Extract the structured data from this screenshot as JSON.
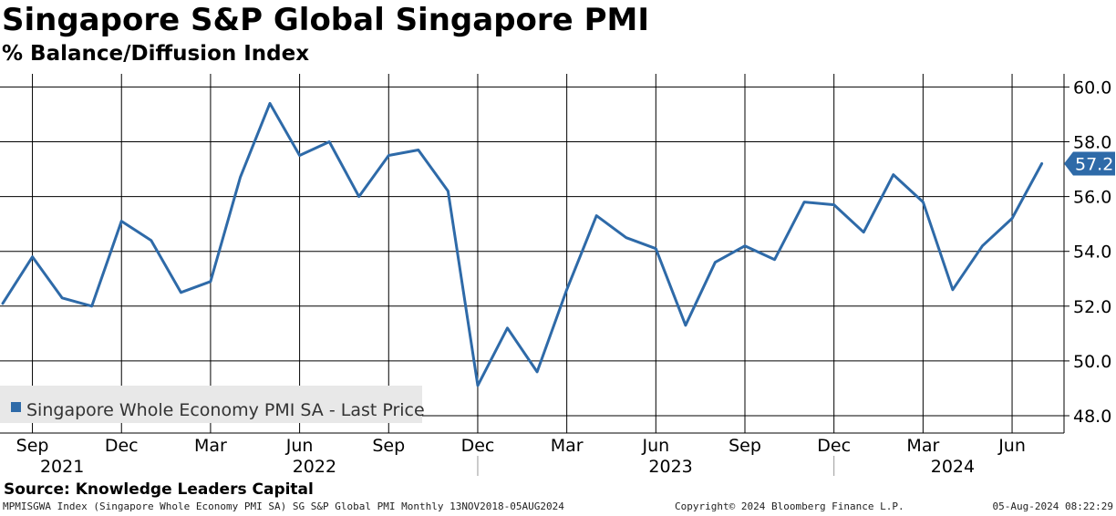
{
  "header": {
    "title": "Singapore S&P Global Singapore PMI",
    "subtitle": "% Balance/Diffusion Index"
  },
  "source": "Source: Knowledge Leaders Capital",
  "footer": {
    "left": "MPMISGWA Index (Singapore Whole Economy PMI SA) SG S&P Global PMI  Monthly 13NOV2018-05AUG2024",
    "middle": "Copyright© 2024 Bloomberg Finance L.P.",
    "right": "05-Aug-2024 08:22:29"
  },
  "colors": {
    "series": "#2e6aa8",
    "grid": "#000000",
    "last_badge": "#2e6aa8",
    "legend_bg": "#e8e8e8"
  },
  "chart_data": {
    "type": "line",
    "title": "Singapore S&P Global Singapore PMI",
    "subtitle": "% Balance/Diffusion Index",
    "x": [
      "2021-08",
      "2021-09",
      "2021-10",
      "2021-11",
      "2021-12",
      "2022-01",
      "2022-02",
      "2022-03",
      "2022-04",
      "2022-05",
      "2022-06",
      "2022-07",
      "2022-08",
      "2022-09",
      "2022-10",
      "2022-11",
      "2022-12",
      "2023-01",
      "2023-02",
      "2023-03",
      "2023-04",
      "2023-05",
      "2023-06",
      "2023-07",
      "2023-08",
      "2023-09",
      "2023-10",
      "2023-11",
      "2023-12",
      "2024-01",
      "2024-02",
      "2024-03",
      "2024-04",
      "2024-05",
      "2024-06",
      "2024-07"
    ],
    "series": [
      {
        "name": "Singapore Whole Economy PMI SA - Last Price",
        "values": [
          52.1,
          53.8,
          52.3,
          52.0,
          55.1,
          54.4,
          52.5,
          52.9,
          56.7,
          59.4,
          57.5,
          58.0,
          56.0,
          57.5,
          57.7,
          56.2,
          49.1,
          51.2,
          49.6,
          52.6,
          55.3,
          54.5,
          54.1,
          51.3,
          53.6,
          54.2,
          53.7,
          55.8,
          55.7,
          54.7,
          56.8,
          55.8,
          52.6,
          54.2,
          55.2,
          57.2
        ]
      }
    ],
    "ylim": [
      47.6,
      60.8
    ],
    "yticks": [
      48.0,
      50.0,
      52.0,
      54.0,
      56.0,
      58.0,
      60.0
    ],
    "ytick_labels": [
      "48.0",
      "50.0",
      "52.0",
      "54.0",
      "56.0",
      "58.0",
      "60.0"
    ],
    "y_axis_side": "right",
    "last_value_label": "57.2",
    "month_ticks": [
      {
        "x": "2021-09",
        "label": "Sep"
      },
      {
        "x": "2021-12",
        "label": "Dec"
      },
      {
        "x": "2022-03",
        "label": "Mar"
      },
      {
        "x": "2022-06",
        "label": "Jun"
      },
      {
        "x": "2022-09",
        "label": "Sep"
      },
      {
        "x": "2022-12",
        "label": "Dec"
      },
      {
        "x": "2023-03",
        "label": "Mar"
      },
      {
        "x": "2023-06",
        "label": "Jun"
      },
      {
        "x": "2023-09",
        "label": "Sep"
      },
      {
        "x": "2023-12",
        "label": "Dec"
      },
      {
        "x": "2024-03",
        "label": "Mar"
      },
      {
        "x": "2024-06",
        "label": "Jun"
      }
    ],
    "year_labels": [
      {
        "label": "2021",
        "from": "2021-08",
        "to": "2021-12"
      },
      {
        "label": "2022",
        "from": "2022-01",
        "to": "2022-12"
      },
      {
        "label": "2023",
        "from": "2023-01",
        "to": "2023-12"
      },
      {
        "label": "2024",
        "from": "2024-01",
        "to": "2024-07"
      }
    ],
    "year_boundaries": [
      "2022-12",
      "2023-12"
    ],
    "grid": true,
    "legend": {
      "position": "bottom-left",
      "entries": [
        "Singapore Whole Economy PMI SA - Last Price"
      ]
    }
  }
}
